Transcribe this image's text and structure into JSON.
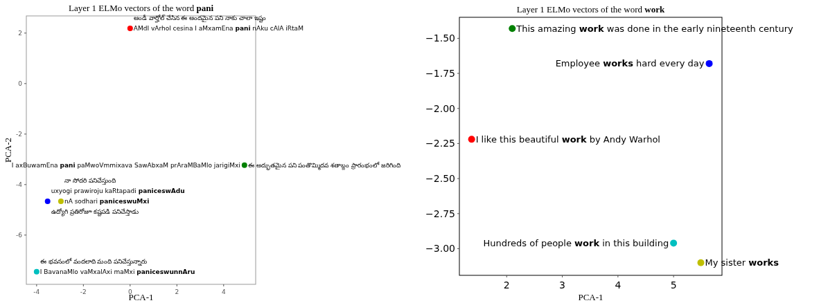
{
  "chart_data": [
    {
      "type": "scatter",
      "title": "Layer 1 ELMo vectors of the word **pani**",
      "xlabel": "PCA-1",
      "ylabel": "PCA-2",
      "marker": "circle",
      "grid": false,
      "x": [
        0.0,
        4.89,
        -3.53,
        -2.96,
        -4.0
      ],
      "values": [
        2.19,
        -3.23,
        -4.66,
        -4.66,
        -7.45
      ],
      "colors": [
        "#ff0000",
        "#008000",
        "#0000ff",
        "#bfbf00",
        "#00bfbf"
      ],
      "xlim": [
        -4.44,
        5.37
      ],
      "ylim": [
        -7.95,
        2.68
      ],
      "xticks": [
        -4,
        -2,
        0,
        2,
        4
      ],
      "yticks": [
        -6,
        -4,
        -2,
        0,
        2
      ],
      "annotations": [
        {
          "text": "AMdI vArhol cesina I aMxamEna **pani** nAku cAlA iRtaM",
          "x": 0.0,
          "y": 2.19
        },
        {
          "text": "ఆండీ వార్హోల్ చేసిన ఈ అందమైన పని నాకు చాలా ఇష్టం",
          "x": 0.0,
          "y": 2.19
        },
        {
          "text": "I axBuwamEna **pani** paMwoVmmixava SawAbxaM prAraMBaMlo jarigiMxi",
          "x": 4.89,
          "y": -3.23
        },
        {
          "text": "ఈ అద్భుతమైన పని పంతొమ్మిదవ శతాబ్దం ప్రారంభంలో జరిగింది",
          "x": 4.89,
          "y": -3.23
        },
        {
          "text": "uxyogi prawiroju kaRtapadi **paniceswAdu**",
          "x": -3.53,
          "y": -4.66
        },
        {
          "text": "ఉద్యోగి ప్రతిరోజూ కష్టపడి పనిచేస్తాడు",
          "x": -3.53,
          "y": -4.66
        },
        {
          "text": "nA sodhari **paniceswuMxi**",
          "x": -2.96,
          "y": -4.66
        },
        {
          "text": "నా సోదరి పనిచేస్తుంది",
          "x": -2.96,
          "y": -4.66
        },
        {
          "text": "I BavanaMlo vaMxalAxi maMxi **paniceswunnAru**",
          "x": -4.0,
          "y": -7.45
        },
        {
          "text": "ఈ భవనంలో వందలాది మంది పనిచేస్తున్నారు",
          "x": -4.0,
          "y": -7.45
        }
      ]
    },
    {
      "type": "scatter",
      "title": "Layer 1 ELMo vectors of the word **work**",
      "xlabel": "PCA-1",
      "marker": "circle",
      "grid": false,
      "x": [
        1.37,
        2.1,
        5.64,
        5.0,
        5.49
      ],
      "values": [
        -2.22,
        -1.43,
        -1.68,
        -2.96,
        -3.1
      ],
      "colors": [
        "#ff0000",
        "#008000",
        "#0000ff",
        "#00bfbf",
        "#bfbf00"
      ],
      "xlim": [
        1.15,
        5.87
      ],
      "ylim": [
        -3.19,
        -1.35
      ],
      "xticks": [
        2,
        3,
        4,
        5
      ],
      "yticks": [
        {
          "value": -3.0,
          "label": "−3.00"
        },
        {
          "value": -2.75,
          "label": "−2.75"
        },
        {
          "value": -2.5,
          "label": "−2.50"
        },
        {
          "value": -2.25,
          "label": "−2.25"
        },
        {
          "value": -2.0,
          "label": "−2.00"
        },
        {
          "value": -1.75,
          "label": "−1.75"
        },
        {
          "value": -1.5,
          "label": "−1.50"
        }
      ],
      "annotations": [
        {
          "text": "I like this beautiful **work** by Andy Warhol",
          "x": 1.37,
          "y": -2.22
        },
        {
          "text": "This amazing **work** was done in the early nineteenth century",
          "x": 2.1,
          "y": -1.43
        },
        {
          "text": "Employee **works** hard every day",
          "x": 5.64,
          "y": -1.68
        },
        {
          "text": "Hundreds of people **work** in this building",
          "x": 5.0,
          "y": -2.96
        },
        {
          "text": "My sister **works**",
          "x": 5.49,
          "y": -3.1
        }
      ]
    }
  ]
}
